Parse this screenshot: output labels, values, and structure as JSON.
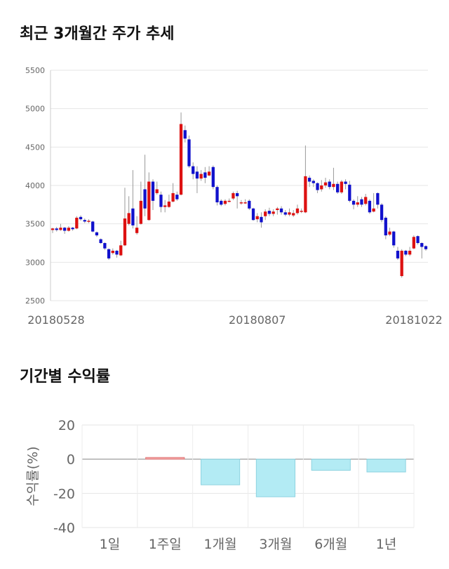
{
  "chart_data": [
    {
      "type": "candlestick",
      "title": "최근 3개월간 주가 추세",
      "ylim": [
        2500,
        5500
      ],
      "yticks": [
        "5500",
        "5000",
        "4500",
        "4000",
        "3500",
        "3000",
        "2500"
      ],
      "xtick_labels": [
        {
          "index": 0,
          "label": "20180528"
        },
        {
          "index": 51,
          "label": "20180807"
        },
        {
          "index": 103,
          "label": "20181022"
        }
      ],
      "grid": true,
      "colors": {
        "up": "#dd1111",
        "down": "#1111cc",
        "wick": "#999999",
        "grid": "#e6e6e6"
      },
      "candles": [
        [
          3420,
          3440,
          3380,
          3450
        ],
        [
          3440,
          3420,
          3400,
          3460
        ],
        [
          3420,
          3450,
          3410,
          3500
        ],
        [
          3450,
          3410,
          3370,
          3460
        ],
        [
          3410,
          3450,
          3400,
          3470
        ],
        [
          3450,
          3430,
          3410,
          3460
        ],
        [
          3440,
          3580,
          3430,
          3600
        ],
        [
          3590,
          3560,
          3540,
          3610
        ],
        [
          3550,
          3530,
          3510,
          3570
        ],
        [
          3530,
          3540,
          3510,
          3560
        ],
        [
          3530,
          3400,
          3390,
          3540
        ],
        [
          3390,
          3350,
          3330,
          3400
        ],
        [
          3300,
          3250,
          3240,
          3310
        ],
        [
          3250,
          3180,
          3160,
          3260
        ],
        [
          3170,
          3050,
          3030,
          3180
        ],
        [
          3120,
          3150,
          3100,
          3180
        ],
        [
          3150,
          3100,
          3060,
          3160
        ],
        [
          3090,
          3220,
          3080,
          3280
        ],
        [
          3220,
          3570,
          3210,
          3970
        ],
        [
          3500,
          3640,
          3480,
          3860
        ],
        [
          3700,
          3480,
          3440,
          4200
        ],
        [
          3380,
          3450,
          3360,
          3600
        ],
        [
          3500,
          3800,
          3490,
          4050
        ],
        [
          3950,
          3700,
          3600,
          4400
        ],
        [
          3550,
          4050,
          3540,
          4170
        ],
        [
          4050,
          3800,
          3680,
          4080
        ],
        [
          3900,
          3950,
          3880,
          4050
        ],
        [
          3880,
          3720,
          3650,
          3920
        ],
        [
          3720,
          3740,
          3650,
          3810
        ],
        [
          3720,
          3790,
          3710,
          3880
        ],
        [
          3790,
          3900,
          3780,
          4030
        ],
        [
          3880,
          3820,
          3800,
          3920
        ],
        [
          3880,
          4800,
          3870,
          4950
        ],
        [
          4720,
          4610,
          4560,
          4780
        ],
        [
          4600,
          4250,
          4230,
          4650
        ],
        [
          4250,
          4150,
          4080,
          4300
        ],
        [
          4180,
          4090,
          3900,
          4250
        ],
        [
          4090,
          4150,
          4060,
          4200
        ],
        [
          4170,
          4100,
          4030,
          4240
        ],
        [
          4130,
          4180,
          4120,
          4250
        ],
        [
          4240,
          3980,
          3950,
          4260
        ],
        [
          3980,
          3780,
          3740,
          4000
        ],
        [
          3800,
          3750,
          3730,
          3820
        ],
        [
          3760,
          3800,
          3740,
          3820
        ],
        [
          3800,
          3800,
          3780,
          3830
        ],
        [
          3830,
          3900,
          3810,
          3920
        ],
        [
          3900,
          3860,
          3700,
          3930
        ],
        [
          3780,
          3780,
          3750,
          3810
        ],
        [
          3780,
          3780,
          3760,
          3820
        ],
        [
          3800,
          3700,
          3680,
          3820
        ],
        [
          3700,
          3550,
          3540,
          3710
        ],
        [
          3560,
          3600,
          3520,
          3640
        ],
        [
          3590,
          3520,
          3450,
          3650
        ],
        [
          3600,
          3660,
          3550,
          3690
        ],
        [
          3670,
          3630,
          3600,
          3710
        ],
        [
          3630,
          3660,
          3600,
          3690
        ],
        [
          3680,
          3700,
          3620,
          3720
        ],
        [
          3700,
          3650,
          3620,
          3730
        ],
        [
          3650,
          3620,
          3600,
          3680
        ],
        [
          3620,
          3650,
          3600,
          3700
        ],
        [
          3610,
          3640,
          3590,
          3680
        ],
        [
          3640,
          3700,
          3620,
          3750
        ],
        [
          3660,
          3670,
          3640,
          3700
        ],
        [
          3650,
          4120,
          3640,
          4520
        ],
        [
          4100,
          4050,
          3980,
          4130
        ],
        [
          4060,
          4030,
          3980,
          4080
        ],
        [
          4030,
          3940,
          3900,
          4040
        ],
        [
          3950,
          4000,
          3920,
          4070
        ],
        [
          4000,
          4040,
          3970,
          4100
        ],
        [
          4050,
          3980,
          3950,
          4080
        ],
        [
          3980,
          4020,
          3940,
          4230
        ],
        [
          4020,
          3910,
          3890,
          4050
        ],
        [
          3910,
          4050,
          3890,
          4070
        ],
        [
          4050,
          4020,
          3950,
          4080
        ],
        [
          4010,
          3800,
          3780,
          4060
        ],
        [
          3800,
          3750,
          3690,
          3820
        ],
        [
          3750,
          3780,
          3720,
          3860
        ],
        [
          3820,
          3750,
          3720,
          3850
        ],
        [
          3760,
          3850,
          3740,
          3890
        ],
        [
          3800,
          3650,
          3630,
          3820
        ],
        [
          3660,
          3700,
          3650,
          3900
        ],
        [
          3900,
          3750,
          3700,
          3910
        ],
        [
          3750,
          3550,
          3520,
          3770
        ],
        [
          3580,
          3350,
          3300,
          3600
        ],
        [
          3360,
          3400,
          3340,
          3450
        ],
        [
          3400,
          3220,
          3190,
          3410
        ],
        [
          3150,
          3050,
          3030,
          3200
        ],
        [
          2820,
          3150,
          2800,
          3170
        ],
        [
          3150,
          3100,
          3080,
          3160
        ],
        [
          3100,
          3150,
          3080,
          3200
        ],
        [
          3180,
          3330,
          3170,
          3350
        ],
        [
          3340,
          3250,
          3230,
          3350
        ],
        [
          3250,
          3200,
          3050,
          3260
        ],
        [
          3210,
          3170,
          3150,
          3220
        ]
      ]
    },
    {
      "type": "bar",
      "title": "기간별 수익률",
      "ylabel": "수익률(%)",
      "ylim": [
        -40,
        20
      ],
      "yticks": [
        "20",
        "0",
        "-20",
        "-40"
      ],
      "categories": [
        "1일",
        "1주일",
        "1개월",
        "3개월",
        "6개월",
        "1년"
      ],
      "values": [
        0,
        1,
        -15,
        -22,
        -6.5,
        -7.5
      ],
      "colors": {
        "positive_fill": "#f4a6a6",
        "positive_edge": "#e07a7a",
        "negative_fill": "#b3ebf4",
        "negative_edge": "#8fd3e0"
      }
    }
  ]
}
